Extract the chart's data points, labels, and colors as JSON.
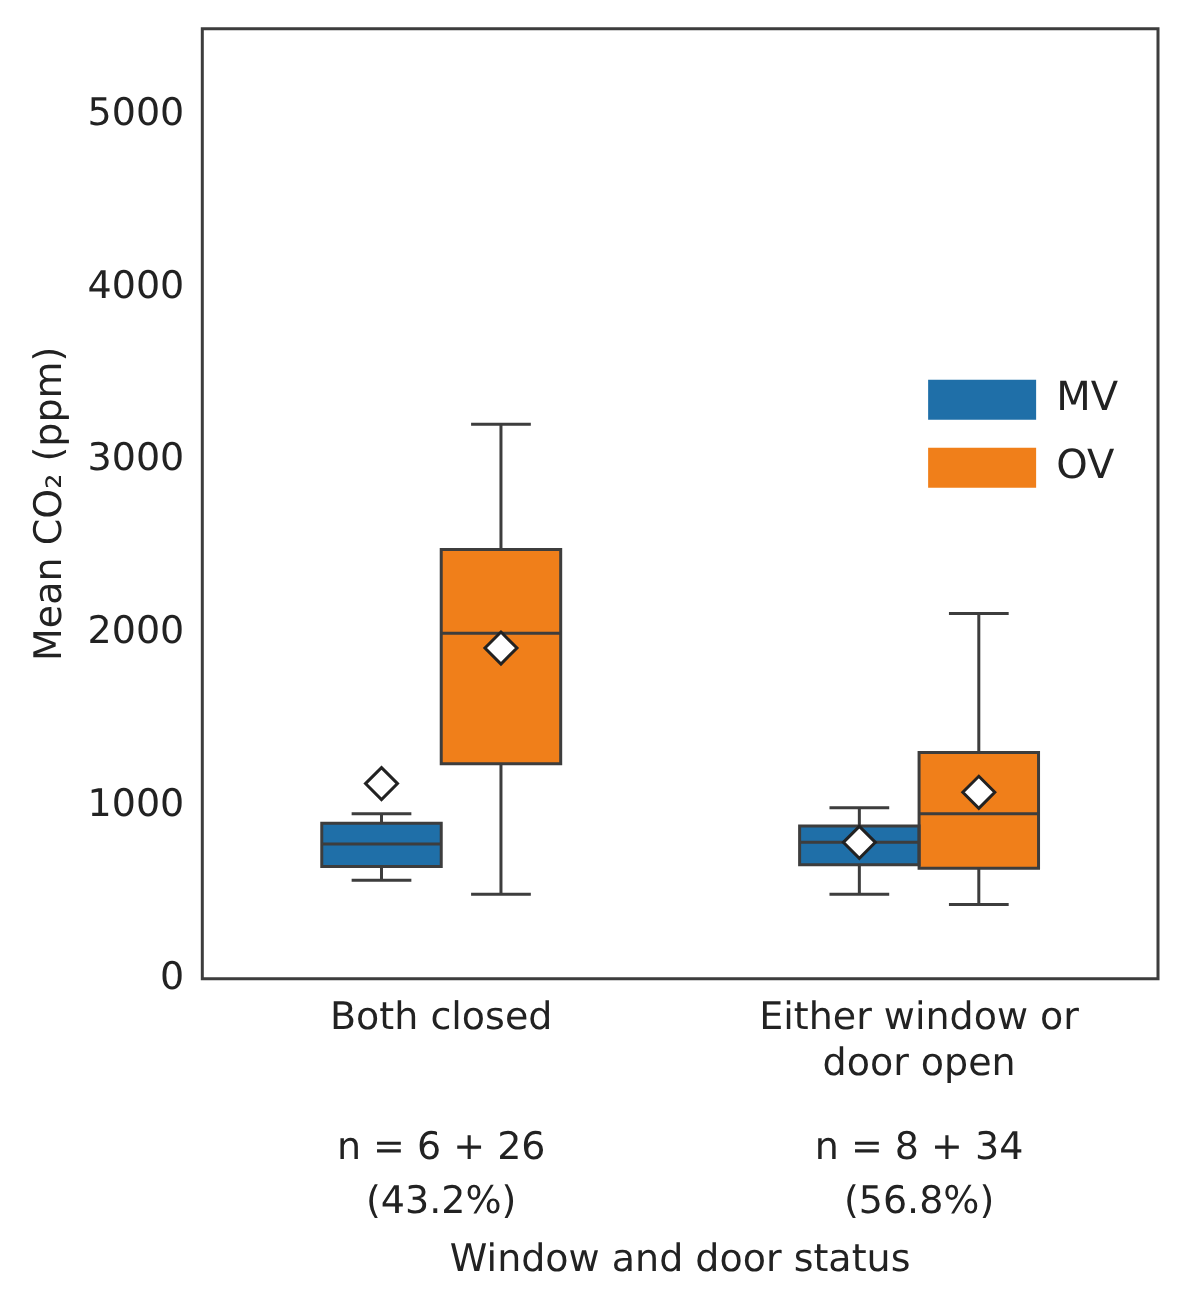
{
  "chart_data": {
    "type": "box",
    "xlabel": "Window and door status",
    "ylabel": "Mean CO₂ (ppm)",
    "categories": [
      "Both closed",
      "Either window or door open"
    ],
    "annotations": [
      "n = 6 + 26\n(43.2%)",
      "n = 8 + 34\n(56.8%)"
    ],
    "series": [
      {
        "name": "MV",
        "color": "#1f6fa8",
        "boxes": [
          {
            "low": 570,
            "q1": 650,
            "median": 780,
            "q3": 900,
            "high": 955,
            "mean": 1130
          },
          {
            "low": 490,
            "q1": 660,
            "median": 790,
            "q3": 885,
            "high": 990,
            "mean": 790
          }
        ]
      },
      {
        "name": "OV",
        "color": "#f07f1a",
        "boxes": [
          {
            "low": 490,
            "q1": 1245,
            "median": 2000,
            "q3": 2485,
            "high": 3210,
            "mean": 1915
          },
          {
            "low": 430,
            "q1": 640,
            "median": 955,
            "q3": 1310,
            "high": 2115,
            "mean": 1080
          }
        ]
      }
    ],
    "ylim": [
      0,
      5500
    ],
    "yticks": [
      0,
      1000,
      2000,
      3000,
      4000,
      5000
    ],
    "legend": "right",
    "grid": false
  }
}
